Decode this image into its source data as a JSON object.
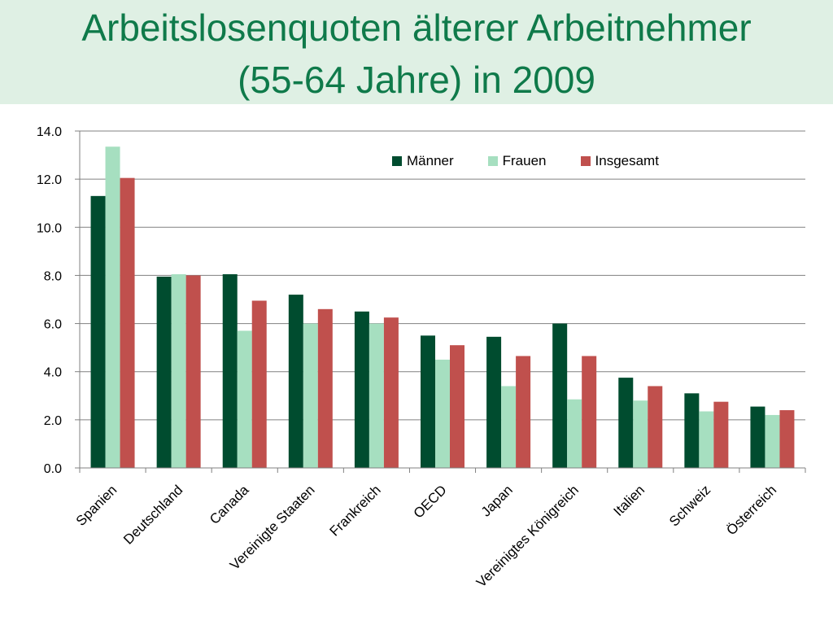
{
  "header": {
    "title_line1": "Arbeitslosenquoten älterer Arbeitnehmer",
    "title_line2": "(55-64 Jahre) in 2009"
  },
  "colors": {
    "header_band": "#dff0e4",
    "title_text": "#0f7a4a",
    "maenner": "#004c2f",
    "frauen": "#a6dfc0",
    "insgesamt": "#c0504d",
    "gridline": "#808080"
  },
  "chart_data": {
    "type": "bar",
    "title": "Arbeitslosenquoten älterer Arbeitnehmer (55-64 Jahre) in 2009",
    "xlabel": "",
    "ylabel": "",
    "ylim": [
      0,
      14
    ],
    "yticks": [
      "0.0",
      "2.0",
      "4.0",
      "6.0",
      "8.0",
      "10.0",
      "12.0",
      "14.0"
    ],
    "grid": true,
    "legend_position": "top-right",
    "categories": [
      "Spanien",
      "Deutschland",
      "Canada",
      "Vereinigte Staaten",
      "Frankreich",
      "OECD",
      "Japan",
      "Vereinigtes Königreich",
      "Italien",
      "Schweiz",
      "Österreich"
    ],
    "series": [
      {
        "name": "Männer",
        "color": "#004c2f",
        "values": [
          11.3,
          7.95,
          8.05,
          7.2,
          6.5,
          5.5,
          5.45,
          6.0,
          3.75,
          3.1,
          2.55
        ]
      },
      {
        "name": "Frauen",
        "color": "#a6dfc0",
        "values": [
          13.35,
          8.05,
          5.7,
          6.0,
          6.0,
          4.5,
          3.4,
          2.85,
          2.8,
          2.35,
          2.2
        ]
      },
      {
        "name": "Insgesamt",
        "color": "#c0504d",
        "values": [
          12.05,
          8.0,
          6.95,
          6.6,
          6.25,
          5.1,
          4.65,
          4.65,
          3.4,
          2.75,
          2.4
        ]
      }
    ]
  }
}
